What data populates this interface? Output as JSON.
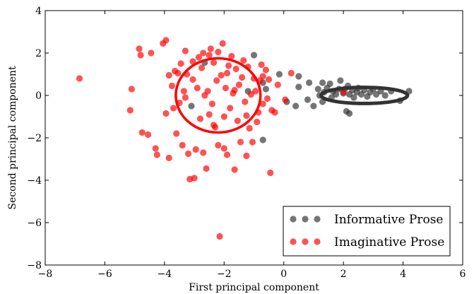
{
  "chart_data": {
    "type": "scatter",
    "title": "",
    "xlabel": "First principal component",
    "ylabel": "Second principal component",
    "xlim": [
      -8,
      6
    ],
    "ylim": [
      -8,
      4
    ],
    "xticks": [
      -8,
      -6,
      -4,
      -2,
      0,
      2,
      4,
      6
    ],
    "yticks": [
      -8,
      -6,
      -4,
      -2,
      0,
      2,
      4
    ],
    "xtick_labels": [
      "−8",
      "−6",
      "−4",
      "−2",
      "0",
      "2",
      "4",
      "6"
    ],
    "ytick_labels": [
      "−8",
      "−6",
      "−4",
      "−2",
      "0",
      "2",
      "4"
    ],
    "grid": false,
    "legend_position": "lower-right",
    "series": [
      {
        "name": "Informative Prose",
        "color": "#333333",
        "points": [
          [
            -1.0,
            1.9
          ],
          [
            -0.7,
            0.6
          ],
          [
            -0.15,
            1.0
          ],
          [
            0.5,
            0.9
          ],
          [
            0.5,
            0.4
          ],
          [
            0.85,
            0.6
          ],
          [
            0.4,
            -0.5
          ],
          [
            0.8,
            -0.2
          ],
          [
            1.0,
            -0.5
          ],
          [
            1.15,
            0.3
          ],
          [
            1.3,
            0.6
          ],
          [
            1.35,
            0.15
          ],
          [
            1.45,
            0.35
          ],
          [
            1.55,
            0.55
          ],
          [
            1.65,
            0.2
          ],
          [
            1.75,
            0.05
          ],
          [
            1.85,
            0.3
          ],
          [
            1.9,
            0.7
          ],
          [
            2.0,
            0.1
          ],
          [
            2.05,
            0.3
          ],
          [
            2.15,
            0.45
          ],
          [
            2.2,
            0.05
          ],
          [
            2.3,
            0.25
          ],
          [
            2.35,
            -0.1
          ],
          [
            2.45,
            0.15
          ],
          [
            2.5,
            0.35
          ],
          [
            2.6,
            0.05
          ],
          [
            2.7,
            0.25
          ],
          [
            2.8,
            -0.05
          ],
          [
            2.9,
            0.15
          ],
          [
            3.0,
            0.3
          ],
          [
            3.1,
            0.05
          ],
          [
            3.25,
            0.2
          ],
          [
            3.4,
            0.0
          ],
          [
            3.6,
            0.2
          ],
          [
            3.9,
            -0.25
          ],
          [
            4.2,
            0.2
          ],
          [
            1.2,
            0.0
          ],
          [
            1.6,
            -0.1
          ],
          [
            2.1,
            -0.75
          ],
          [
            2.2,
            -0.85
          ],
          [
            1.3,
            -0.3
          ],
          [
            -0.7,
            -2.1
          ],
          [
            -3.1,
            -0.5
          ],
          [
            -2.65,
            1.55
          ],
          [
            -0.6,
            0.3
          ],
          [
            0.1,
            -0.3
          ],
          [
            -1.2,
            0.2
          ]
        ],
        "ellipse": {
          "center": [
            2.7,
            0.0
          ],
          "semi_axis_x": 1.45,
          "semi_axis_y": 0.38
        }
      },
      {
        "name": "Imaginative Prose",
        "color": "#ff0000",
        "points": [
          [
            -6.85,
            0.8
          ],
          [
            -5.1,
            0.3
          ],
          [
            -5.15,
            -0.7
          ],
          [
            -4.85,
            2.2
          ],
          [
            -4.8,
            1.9
          ],
          [
            -4.75,
            -1.75
          ],
          [
            -4.55,
            -1.85
          ],
          [
            -4.45,
            2.0
          ],
          [
            -4.3,
            -2.5
          ],
          [
            -4.25,
            -2.8
          ],
          [
            -4.05,
            2.45
          ],
          [
            -3.95,
            2.6
          ],
          [
            -3.95,
            -0.85
          ],
          [
            -3.85,
            0.95
          ],
          [
            -3.85,
            -2.95
          ],
          [
            -3.75,
            0.45
          ],
          [
            -3.7,
            -0.6
          ],
          [
            -3.65,
            1.15
          ],
          [
            -3.6,
            -1.8
          ],
          [
            -3.55,
            1.05
          ],
          [
            -3.5,
            -0.35
          ],
          [
            -3.45,
            1.5
          ],
          [
            -3.4,
            -2.35
          ],
          [
            -3.35,
            0.2
          ],
          [
            -3.3,
            2.1
          ],
          [
            -3.25,
            1.0
          ],
          [
            -3.2,
            -2.75
          ],
          [
            -3.15,
            -3.95
          ],
          [
            -3.05,
            0.75
          ],
          [
            -3.0,
            -3.9
          ],
          [
            -2.95,
            -2.55
          ],
          [
            -2.9,
            0.35
          ],
          [
            -2.85,
            1.8
          ],
          [
            -2.8,
            -1.1
          ],
          [
            -2.75,
            1.3
          ],
          [
            -2.7,
            -2.7
          ],
          [
            -2.65,
            0.0
          ],
          [
            -2.6,
            -3.45
          ],
          [
            -2.55,
            0.2
          ],
          [
            -2.5,
            1.9
          ],
          [
            -2.45,
            2.2
          ],
          [
            -2.4,
            -0.4
          ],
          [
            -2.35,
            1.55
          ],
          [
            -2.3,
            -1.5
          ],
          [
            -2.25,
            0.7
          ],
          [
            -2.2,
            2.05
          ],
          [
            -2.2,
            -2.35
          ],
          [
            -2.15,
            -6.65
          ],
          [
            -2.1,
            0.95
          ],
          [
            -2.05,
            2.45
          ],
          [
            -2.0,
            -2.5
          ],
          [
            -1.95,
            0.35
          ],
          [
            -1.9,
            -2.8
          ],
          [
            -1.85,
            1.4
          ],
          [
            -1.8,
            -0.6
          ],
          [
            -1.75,
            1.85
          ],
          [
            -1.7,
            0.1
          ],
          [
            -1.65,
            -3.5
          ],
          [
            -1.6,
            1.25
          ],
          [
            -1.55,
            -1.2
          ],
          [
            -1.5,
            0.5
          ],
          [
            -1.45,
            -2.2
          ],
          [
            -1.4,
            0.85
          ],
          [
            -1.35,
            1.65
          ],
          [
            -1.3,
            -0.3
          ],
          [
            -1.25,
            -2.85
          ],
          [
            -1.2,
            1.35
          ],
          [
            -1.15,
            -1.55
          ],
          [
            -1.1,
            0.05
          ],
          [
            -1.05,
            -2.2
          ],
          [
            -1.0,
            0.8
          ],
          [
            -0.95,
            0.2
          ],
          [
            -0.9,
            -1.25
          ],
          [
            -0.85,
            -0.8
          ],
          [
            -0.8,
            0.7
          ],
          [
            -0.75,
            1.45
          ],
          [
            -0.7,
            -0.4
          ],
          [
            -0.6,
            1.2
          ],
          [
            -0.55,
            -0.15
          ],
          [
            -0.5,
            0.75
          ],
          [
            -0.45,
            -3.65
          ],
          [
            -0.4,
            -0.7
          ],
          [
            -0.3,
            -0.8
          ],
          [
            -0.2,
            0.5
          ],
          [
            0.25,
            1.05
          ],
          [
            0.05,
            -0.2
          ],
          [
            -2.35,
            -1.4
          ],
          [
            -2.7,
            2.0
          ],
          [
            -3.3,
            -0.1
          ],
          [
            -1.9,
            1.05
          ],
          [
            -2.5,
            -0.9
          ],
          [
            -1.65,
            0.25
          ],
          [
            -0.7,
            0.9
          ],
          [
            -3.05,
            1.6
          ],
          [
            -2.0,
            -1.0
          ],
          [
            -1.25,
            -0.95
          ],
          [
            2.0,
            0.15
          ]
        ],
        "ellipse": {
          "center": [
            -2.2,
            0.0
          ],
          "semi_axis_x": 1.42,
          "semi_axis_y": 1.75
        }
      }
    ]
  }
}
